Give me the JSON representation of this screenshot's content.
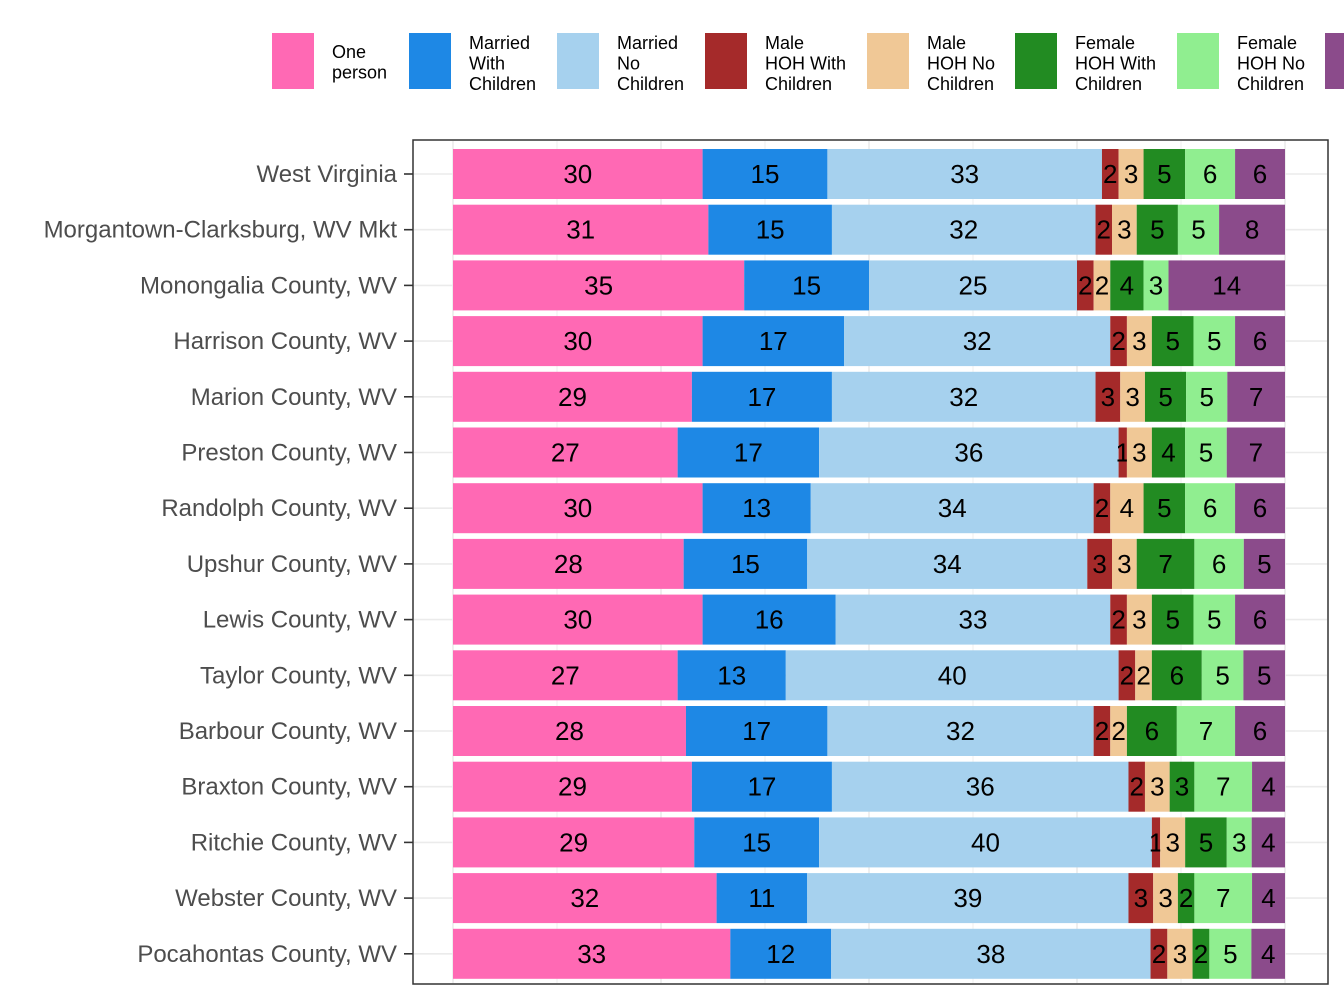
{
  "chart_data": {
    "type": "bar",
    "orientation": "horizontal",
    "stacked": true,
    "normalized_to_100": true,
    "grid": true,
    "legend_position": "top",
    "colors": {
      "one_person": "#FF69B4",
      "married_with_children": "#1E88E5",
      "married_no_children": "#A6D1EE",
      "male_hoh_with_children": "#A52A2A",
      "male_hoh_no_children": "#F0C896",
      "female_hoh_with_children": "#228B22",
      "female_hoh_no_children": "#90EE90",
      "other": "#8B4B8B"
    },
    "legend": [
      {
        "key": "one_person",
        "lines": [
          "One",
          "person"
        ]
      },
      {
        "key": "married_with_children",
        "lines": [
          "Married",
          "With",
          "Children"
        ]
      },
      {
        "key": "married_no_children",
        "lines": [
          "Married",
          "No",
          "Children"
        ]
      },
      {
        "key": "male_hoh_with_children",
        "lines": [
          "Male",
          "HOH With",
          "Children"
        ]
      },
      {
        "key": "male_hoh_no_children",
        "lines": [
          "Male",
          "HOH No",
          "Children"
        ]
      },
      {
        "key": "female_hoh_with_children",
        "lines": [
          "Female",
          "HOH With",
          "Children"
        ]
      },
      {
        "key": "female_hoh_no_children",
        "lines": [
          "Female",
          "HOH No",
          "Children"
        ]
      },
      {
        "key": "other",
        "lines": []
      }
    ],
    "categories": [
      "West Virginia",
      "Morgantown-Clarksburg, WV Mkt",
      "Monongalia County, WV",
      "Harrison County, WV",
      "Marion County, WV",
      "Preston County, WV",
      "Randolph County, WV",
      "Upshur County, WV",
      "Lewis County, WV",
      "Taylor County, WV",
      "Barbour County, WV",
      "Braxton County, WV",
      "Ritchie County, WV",
      "Webster County, WV",
      "Pocahontas County, WV"
    ],
    "series": [
      {
        "key": "one_person",
        "values": [
          30,
          31,
          35,
          30,
          29,
          27,
          30,
          28,
          30,
          27,
          28,
          29,
          29,
          32,
          33
        ]
      },
      {
        "key": "married_with_children",
        "values": [
          15,
          15,
          15,
          17,
          17,
          17,
          13,
          15,
          16,
          13,
          17,
          17,
          15,
          11,
          12
        ]
      },
      {
        "key": "married_no_children",
        "values": [
          33,
          32,
          25,
          32,
          32,
          36,
          34,
          34,
          33,
          40,
          32,
          36,
          40,
          39,
          38
        ]
      },
      {
        "key": "male_hoh_with_children",
        "values": [
          2,
          2,
          2,
          2,
          3,
          1,
          2,
          3,
          2,
          2,
          2,
          2,
          1,
          3,
          2
        ]
      },
      {
        "key": "male_hoh_no_children",
        "values": [
          3,
          3,
          2,
          3,
          3,
          3,
          4,
          3,
          3,
          2,
          2,
          3,
          3,
          3,
          3
        ]
      },
      {
        "key": "female_hoh_with_children",
        "values": [
          5,
          5,
          4,
          5,
          5,
          4,
          5,
          7,
          5,
          6,
          6,
          3,
          5,
          2,
          2
        ]
      },
      {
        "key": "female_hoh_no_children",
        "values": [
          6,
          5,
          3,
          5,
          5,
          5,
          6,
          6,
          5,
          5,
          7,
          7,
          3,
          7,
          5
        ]
      },
      {
        "key": "other",
        "values": [
          6,
          8,
          14,
          6,
          7,
          7,
          6,
          5,
          6,
          5,
          6,
          4,
          4,
          4,
          4
        ]
      }
    ]
  }
}
